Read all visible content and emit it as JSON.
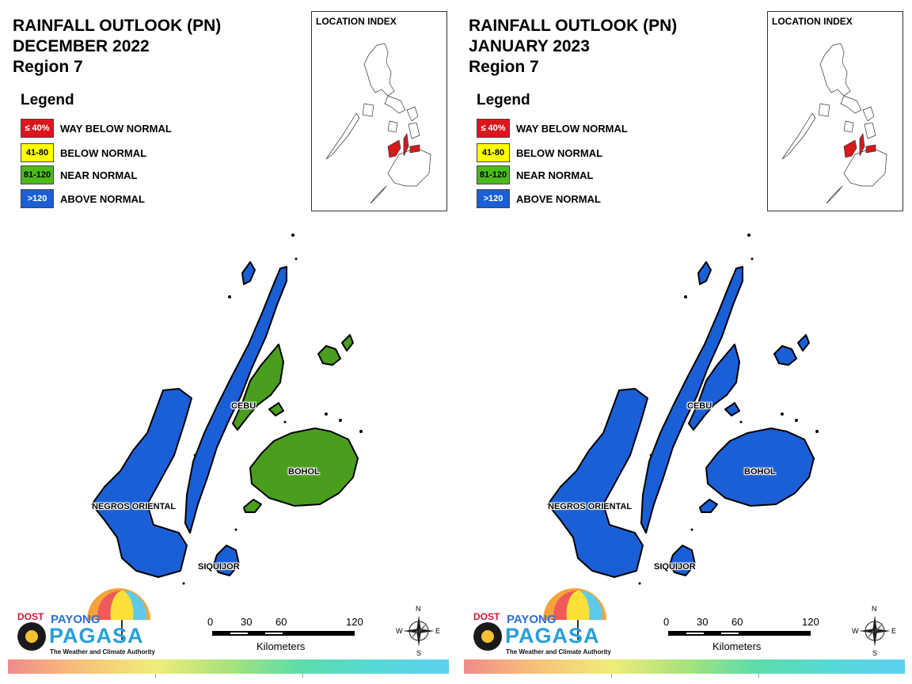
{
  "panels": [
    {
      "title_line1": "RAINFALL OUTLOOK (PN)",
      "title_line2": "DECEMBER 2022",
      "title_line3": "Region 7",
      "legend_title": "Legend",
      "legend": [
        {
          "swatch": "≤ 40%",
          "label": "WAY BELOW NORMAL",
          "color": "#d7191c"
        },
        {
          "swatch": "41-80",
          "label": "BELOW NORMAL",
          "color": "#ffff00"
        },
        {
          "swatch": "81-120",
          "label": "NEAR NORMAL",
          "color": "#4cbb17"
        },
        {
          "swatch": ">120",
          "label": "ABOVE NORMAL",
          "color": "#1a5fd6"
        }
      ],
      "index_title": "LOCATION INDEX",
      "provinces": {
        "cebu": {
          "label": "CEBU",
          "category": "ABOVE NORMAL",
          "north_category": "NEAR NORMAL"
        },
        "bohol": {
          "label": "BOHOL",
          "category": "NEAR NORMAL"
        },
        "negros": {
          "label": "NEGROS ORIENTAL",
          "category": "ABOVE NORMAL"
        },
        "siquijor": {
          "label": "SIQUIJOR",
          "category": "ABOVE NORMAL"
        }
      },
      "colors": {
        "cebu": "#1a5fd6",
        "cebu_north": "#4a9e1e",
        "bohol": "#4a9e1e",
        "camotes": "#4a9e1e",
        "negros": "#1a5fd6",
        "siquijor": "#1a5fd6"
      },
      "scale": {
        "ticks": [
          "0",
          "30",
          "60",
          "120"
        ],
        "unit": "Kilometers"
      },
      "logo": {
        "dost": "DOST",
        "payong": "PAYONG",
        "pagasa": "PAGASA",
        "tagline": "The Weather and Climate Authority"
      },
      "compass": {
        "n": "N",
        "s": "S",
        "e": "E",
        "w": "W"
      }
    },
    {
      "title_line1": "RAINFALL OUTLOOK (PN)",
      "title_line2": "JANUARY 2023",
      "title_line3": "Region 7",
      "legend_title": "Legend",
      "legend": [
        {
          "swatch": "≤ 40%",
          "label": "WAY BELOW NORMAL",
          "color": "#d7191c"
        },
        {
          "swatch": "41-80",
          "label": "BELOW NORMAL",
          "color": "#ffff00"
        },
        {
          "swatch": "81-120",
          "label": "NEAR NORMAL",
          "color": "#4cbb17"
        },
        {
          "swatch": ">120",
          "label": "ABOVE NORMAL",
          "color": "#1a5fd6"
        }
      ],
      "index_title": "LOCATION INDEX",
      "provinces": {
        "cebu": {
          "label": "CEBU",
          "category": "ABOVE NORMAL"
        },
        "bohol": {
          "label": "BOHOL",
          "category": "ABOVE NORMAL"
        },
        "negros": {
          "label": "NEGROS ORIENTAL",
          "category": "ABOVE NORMAL"
        },
        "siquijor": {
          "label": "SIQUIJOR",
          "category": "ABOVE NORMAL"
        }
      },
      "colors": {
        "cebu": "#1a5fd6",
        "cebu_north": "#1a5fd6",
        "bohol": "#1a5fd6",
        "camotes": "#1a5fd6",
        "negros": "#1a5fd6",
        "siquijor": "#1a5fd6"
      },
      "scale": {
        "ticks": [
          "0",
          "30",
          "60",
          "120"
        ],
        "unit": "Kilometers"
      },
      "logo": {
        "dost": "DOST",
        "payong": "PAYONG",
        "pagasa": "PAGASA",
        "tagline": "The Weather and Climate Authority"
      },
      "compass": {
        "n": "N",
        "s": "S",
        "e": "E",
        "w": "W"
      }
    }
  ]
}
